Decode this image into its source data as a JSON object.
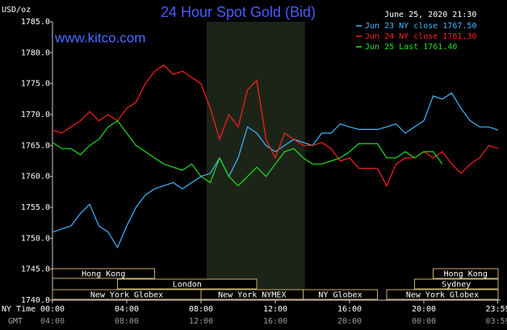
{
  "chart_data": {
    "type": "line",
    "title": "24 Hour Spot Gold (Bid)",
    "ylabel": "USD/oz",
    "watermark": "www.kitco.com",
    "timestamp": "June 25, 2020 21:30",
    "xlabel": "NY Time",
    "x2label": "GMT",
    "xlim": [
      0,
      24
    ],
    "ylim": [
      1740,
      1785
    ],
    "xticks": [
      {
        "value": 0,
        "label": "00:00"
      },
      {
        "value": 4,
        "label": "04:00"
      },
      {
        "value": 8,
        "label": "08:00"
      },
      {
        "value": 12,
        "label": "12:00"
      },
      {
        "value": 16,
        "label": "16:00"
      },
      {
        "value": 20,
        "label": "20:00"
      },
      {
        "value": 23.98,
        "label": "23:59"
      }
    ],
    "x2ticks": [
      {
        "value": 0,
        "label": "04:00"
      },
      {
        "value": 4,
        "label": "08:00"
      },
      {
        "value": 8,
        "label": "12:00"
      },
      {
        "value": 12,
        "label": "16:00"
      },
      {
        "value": 16,
        "label": "20:00"
      },
      {
        "value": 20,
        "label": "00:00"
      },
      {
        "value": 23.98,
        "label": "03:59"
      }
    ],
    "yticks": [
      {
        "value": 1740,
        "label": "1740.0"
      },
      {
        "value": 1745,
        "label": "1745.0"
      },
      {
        "value": 1750,
        "label": "1750.0"
      },
      {
        "value": 1755,
        "label": "1755.0"
      },
      {
        "value": 1760,
        "label": "1760.0"
      },
      {
        "value": 1765,
        "label": "1765.0"
      },
      {
        "value": 1770,
        "label": "1770.0"
      },
      {
        "value": 1775,
        "label": "1775.0"
      },
      {
        "value": 1780,
        "label": "1780.0"
      },
      {
        "value": 1785,
        "label": "1785.0"
      }
    ],
    "highlight_range": [
      8.3,
      13.6
    ],
    "sessions": [
      [
        {
          "label": "Hong Kong",
          "start": 0,
          "end": 5.5
        },
        {
          "label": "Hong Kong",
          "start": 20.5,
          "end": 24
        }
      ],
      [
        {
          "label": "London",
          "start": 3.5,
          "end": 11
        },
        {
          "label": "Sydney",
          "start": 19.5,
          "end": 24
        }
      ],
      [
        {
          "label": "New York Globex",
          "start": 0,
          "end": 8
        },
        {
          "label": "New York NYMEX",
          "start": 8,
          "end": 13.5
        },
        {
          "label": "NY Globex",
          "start": 13.5,
          "end": 17.5
        },
        {
          "label": "New York Globex",
          "start": 18,
          "end": 24
        }
      ]
    ],
    "x": [
      0,
      0.5,
      1,
      1.5,
      2,
      2.5,
      3,
      3.5,
      4,
      4.5,
      5,
      5.5,
      6,
      6.5,
      7,
      7.5,
      8,
      8.5,
      9,
      9.5,
      10,
      10.5,
      11,
      11.5,
      12,
      12.5,
      13,
      13.5,
      14,
      14.5,
      15,
      15.5,
      16,
      16.5,
      17,
      17.5,
      18,
      18.5,
      19,
      19.5,
      20,
      20.5,
      21,
      21.5,
      22,
      22.5,
      23,
      23.5,
      24
    ],
    "series": [
      {
        "name": "Jun 23 NY close 1767.50",
        "color": "#40b8ff",
        "values": [
          1751,
          1751.5,
          1752,
          1754,
          1755.5,
          1752,
          1751,
          1748.5,
          1752,
          1755,
          1757,
          1758,
          1758.5,
          1759,
          1758,
          1759,
          1760,
          1760.5,
          1763,
          1760,
          1763,
          1768,
          1767,
          1765,
          1764,
          1765,
          1766,
          1765.5,
          1765,
          1767,
          1767,
          1768.5,
          1768,
          1767.6,
          1767.6,
          1767.6,
          1768,
          1768.5,
          1767,
          1768,
          1769,
          1773,
          1772.5,
          1773.5,
          1771,
          1769,
          1768,
          1768,
          1767.5
        ]
      },
      {
        "name": "Jun 24 NY close 1761.30",
        "color": "#ff2020",
        "values": [
          1767.5,
          1767,
          1768,
          1769,
          1770.5,
          1769,
          1770,
          1769,
          1771,
          1772,
          1775,
          1777,
          1778,
          1776.5,
          1777,
          1776,
          1775,
          1771,
          1766,
          1770,
          1768,
          1774,
          1775.5,
          1766,
          1763,
          1767,
          1766,
          1765,
          1765,
          1765.5,
          1764.5,
          1762.5,
          1763,
          1761.3,
          1761.3,
          1761.3,
          1758.5,
          1762,
          1763,
          1763,
          1764,
          1763,
          1764,
          1762,
          1760.5,
          1762,
          1763,
          1765,
          1764.5
        ]
      },
      {
        "name": "Jun 25 Last 1761.40",
        "color": "#20e020",
        "values": [
          1765.5,
          1764.5,
          1764.5,
          1763.5,
          1765,
          1766,
          1768,
          1769,
          1767,
          1765,
          1764,
          1763,
          1762,
          1761.5,
          1761,
          1762,
          1760,
          1759,
          1763,
          1760,
          1758.5,
          1760,
          1761.5,
          1760,
          1762,
          1764,
          1764.5,
          1763,
          1762,
          1762,
          1762.5,
          1763,
          1764,
          1765.3,
          1765.3,
          1765.3,
          1763,
          1763,
          1764,
          1763,
          1764,
          1764,
          1762,
          null,
          null,
          null,
          null,
          null,
          null
        ]
      }
    ]
  }
}
